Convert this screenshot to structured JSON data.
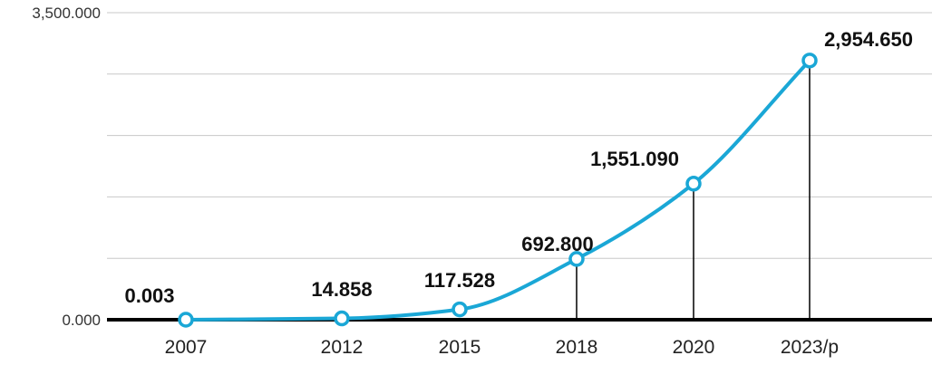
{
  "chart_data": {
    "type": "line",
    "x": [
      "2007",
      "2012",
      "2015",
      "2018",
      "2020",
      "2023/p"
    ],
    "series": [
      {
        "values": [
          0.003,
          14.858,
          117.528,
          692.8,
          1551.09,
          2954.65
        ]
      }
    ],
    "data_labels": [
      "0.003",
      "14.858",
      "117.528",
      "692.800",
      "1,551.090",
      "2,954.650"
    ],
    "y_tick_labels": [
      "3,500.000",
      "0.000"
    ],
    "ylim": [
      0,
      3500
    ],
    "grid": true,
    "legend": "none",
    "colors": {
      "line": "#1aa7d6",
      "baseline": "#000000",
      "grid": "#c8c8c8"
    }
  }
}
